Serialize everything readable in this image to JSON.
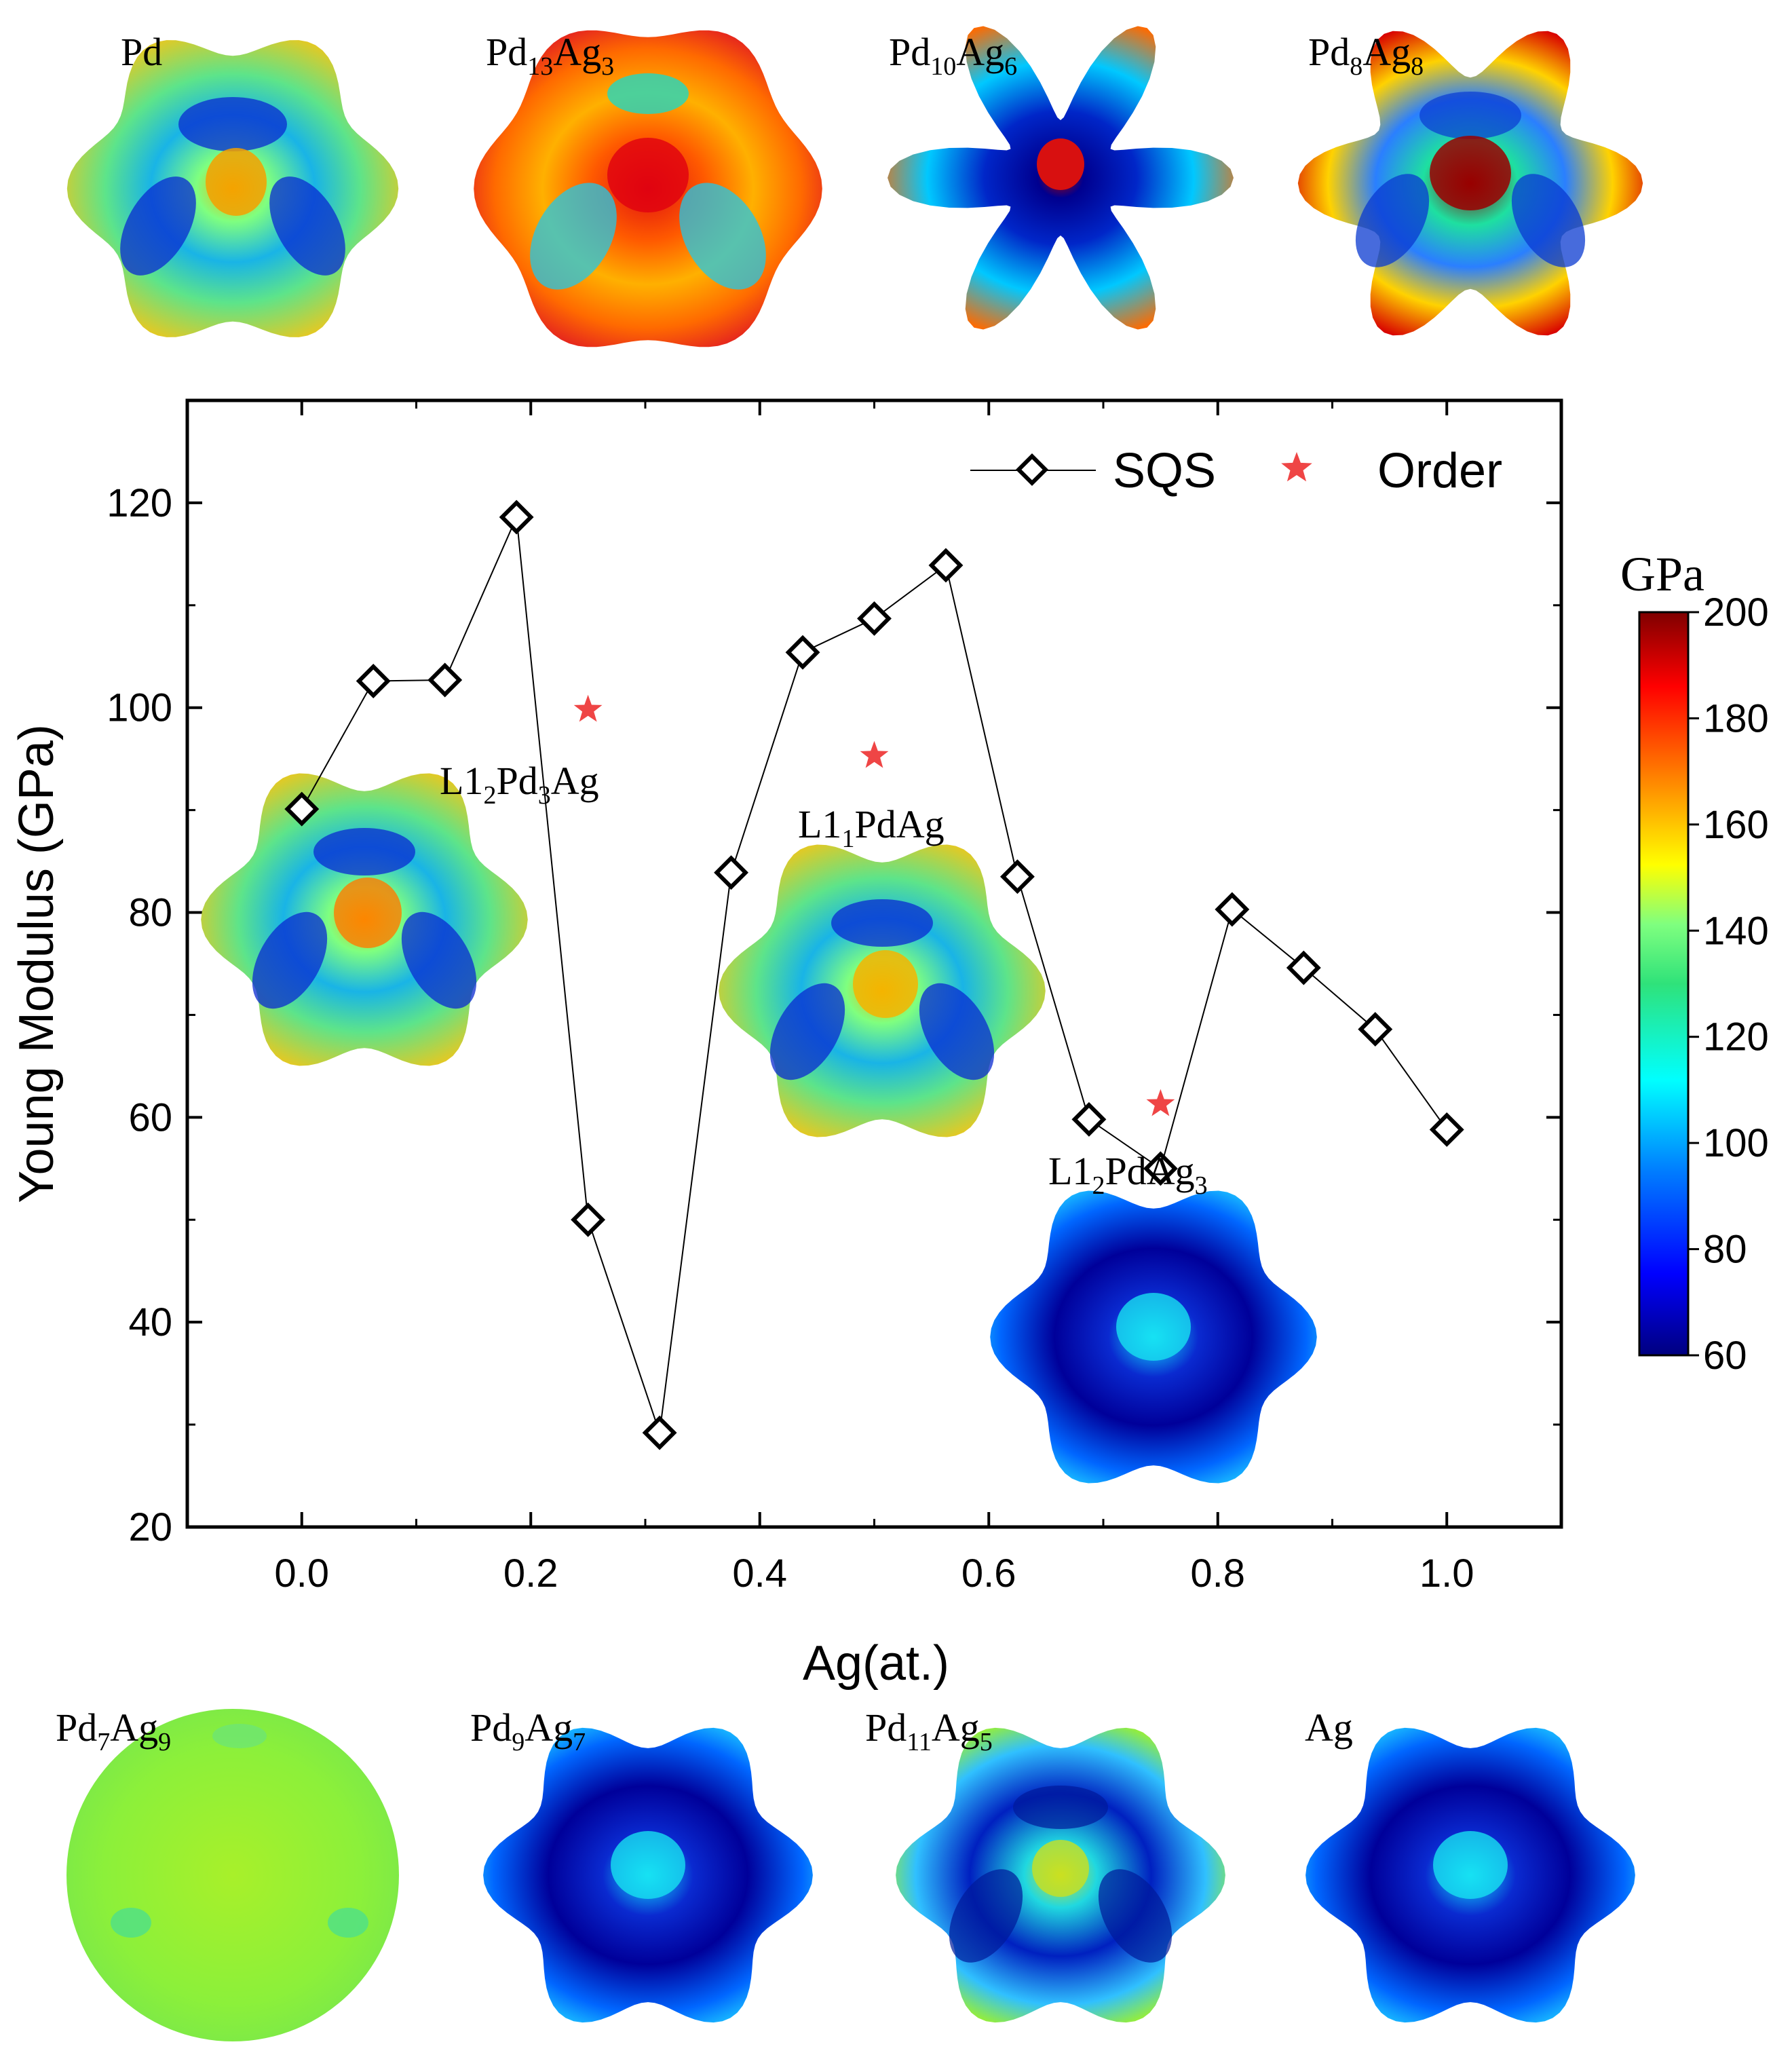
{
  "colors": {
    "sqs_line": "#000000",
    "order_star": "#ef4545",
    "colormap": [
      "#00007f",
      "#0000ff",
      "#007fff",
      "#00ffff",
      "#2fe27a",
      "#7fff7f",
      "#ffff00",
      "#ff7f00",
      "#ff0000",
      "#7f0000"
    ]
  },
  "chart_data": {
    "type": "scatter",
    "title": "",
    "xlabel": "Ag(at.)",
    "ylabel": "Young Modulus (GPa)",
    "xlim": [
      -0.1,
      1.1
    ],
    "ylim": [
      20,
      130
    ],
    "x_ticks": [
      0.0,
      0.2,
      0.4,
      0.6,
      0.8,
      1.0
    ],
    "x_tick_labels": [
      "0.0",
      "0.2",
      "0.4",
      "0.6",
      "0.8",
      "1.0"
    ],
    "y_ticks": [
      20,
      40,
      60,
      80,
      100,
      120
    ],
    "y_tick_labels": [
      "20",
      "40",
      "60",
      "80",
      "100",
      "120"
    ],
    "legend_position": "top-right",
    "series": [
      {
        "name": "SQS",
        "marker": "open-diamond",
        "style": "line",
        "x": [
          0.0,
          0.0625,
          0.125,
          0.1875,
          0.25,
          0.3125,
          0.375,
          0.4375,
          0.5,
          0.5625,
          0.625,
          0.6875,
          0.75,
          0.8125,
          0.875,
          0.9375,
          1.0
        ],
        "y": [
          90.1,
          102.6,
          102.7,
          118.6,
          50.0,
          29.2,
          83.9,
          105.4,
          108.7,
          113.9,
          83.5,
          59.8,
          55.0,
          80.3,
          74.6,
          68.6,
          58.8
        ]
      },
      {
        "name": "Order",
        "marker": "star",
        "style": "scatter",
        "x": [
          0.25,
          0.5,
          0.75
        ],
        "y": [
          99.8,
          95.3,
          61.3
        ]
      }
    ],
    "annotations": [
      {
        "main": "L1",
        "sub": "2",
        "rest": "Pd",
        "sub2": "3",
        "tail": "Ag"
      },
      {
        "main": "L1",
        "sub": "1",
        "rest": "PdAg",
        "sub2": "",
        "tail": ""
      },
      {
        "main": "L1",
        "sub": "2",
        "rest": "Pd",
        "sub2": "",
        "tail": "Ag",
        "sub3": "3"
      }
    ],
    "colorbar": {
      "label": "GPa",
      "min": 60,
      "max": 200,
      "ticks": [
        "200",
        "180",
        "160",
        "140",
        "120",
        "100",
        "80",
        "60"
      ]
    }
  },
  "surface_labels": {
    "top": [
      {
        "el1": "Pd",
        "n1": "",
        "el2": "",
        "n2": ""
      },
      {
        "el1": "Pd",
        "n1": "13",
        "el2": "Ag",
        "n2": "3"
      },
      {
        "el1": "Pd",
        "n1": "10",
        "el2": "Ag",
        "n2": "6"
      },
      {
        "el1": "Pd",
        "n1": "8",
        "el2": "Ag",
        "n2": "8"
      }
    ],
    "bottom": [
      {
        "el1": "Pd",
        "n1": "7",
        "el2": "Ag",
        "n2": "9"
      },
      {
        "el1": "Pd",
        "n1": "9",
        "el2": "Ag",
        "n2": "7"
      },
      {
        "el1": "Pd",
        "n1": "11",
        "el2": "Ag",
        "n2": "5"
      },
      {
        "el1": "Ag",
        "n1": "",
        "el2": "",
        "n2": ""
      }
    ]
  }
}
